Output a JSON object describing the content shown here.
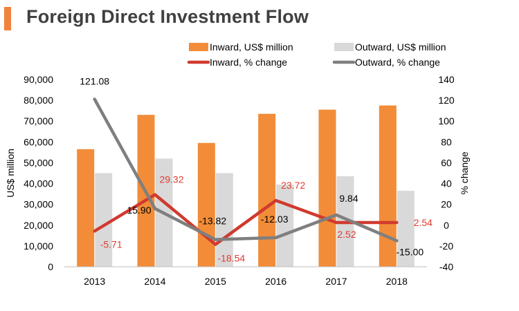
{
  "header": {
    "title": "Foreign Direct Investment Flow",
    "accent_color": "#f0823c"
  },
  "chart_data": {
    "type": "bar",
    "categories": [
      "2013",
      "2014",
      "2015",
      "2016",
      "2017",
      "2018"
    ],
    "series": [
      {
        "name": "Inward, US$ million",
        "kind": "bar",
        "axis": "left",
        "color": "#f28c38",
        "values": [
          56500,
          73000,
          59500,
          73500,
          75500,
          77500
        ]
      },
      {
        "name": "Outward, US$ million",
        "kind": "bar",
        "axis": "left",
        "color": "#d9d9d9",
        "values": [
          45000,
          52000,
          45000,
          39500,
          43500,
          36500
        ]
      },
      {
        "name": "Inward, % change",
        "kind": "line",
        "axis": "right",
        "color": "#d03a2e",
        "values": [
          -5.71,
          29.32,
          -18.54,
          23.72,
          2.52,
          2.54
        ],
        "labels": [
          "-5.71",
          "29.32",
          "-18.54",
          "23.72",
          "2.52",
          "2.54"
        ]
      },
      {
        "name": "Outward, % change",
        "kind": "line",
        "axis": "right",
        "color": "#7f7f7f",
        "values": [
          121.08,
          15.9,
          -13.82,
          -12.03,
          9.84,
          -15.0
        ],
        "labels": [
          "121.08",
          "15.90",
          "-13.82",
          "-12.03",
          "9.84",
          "-15.00"
        ]
      }
    ],
    "ylabel": "US$ million",
    "y2label": "% change",
    "ylim": [
      0,
      90000
    ],
    "yticks": [
      "0",
      "10,000",
      "20,000",
      "30,000",
      "40,000",
      "50,000",
      "60,000",
      "70,000",
      "80,000",
      "90,000"
    ],
    "y2lim": [
      -40,
      140
    ],
    "y2ticks": [
      "-40",
      "-20",
      "0",
      "20",
      "40",
      "60",
      "80",
      "100",
      "120",
      "140"
    ],
    "legend_position": "top",
    "grid": false
  }
}
